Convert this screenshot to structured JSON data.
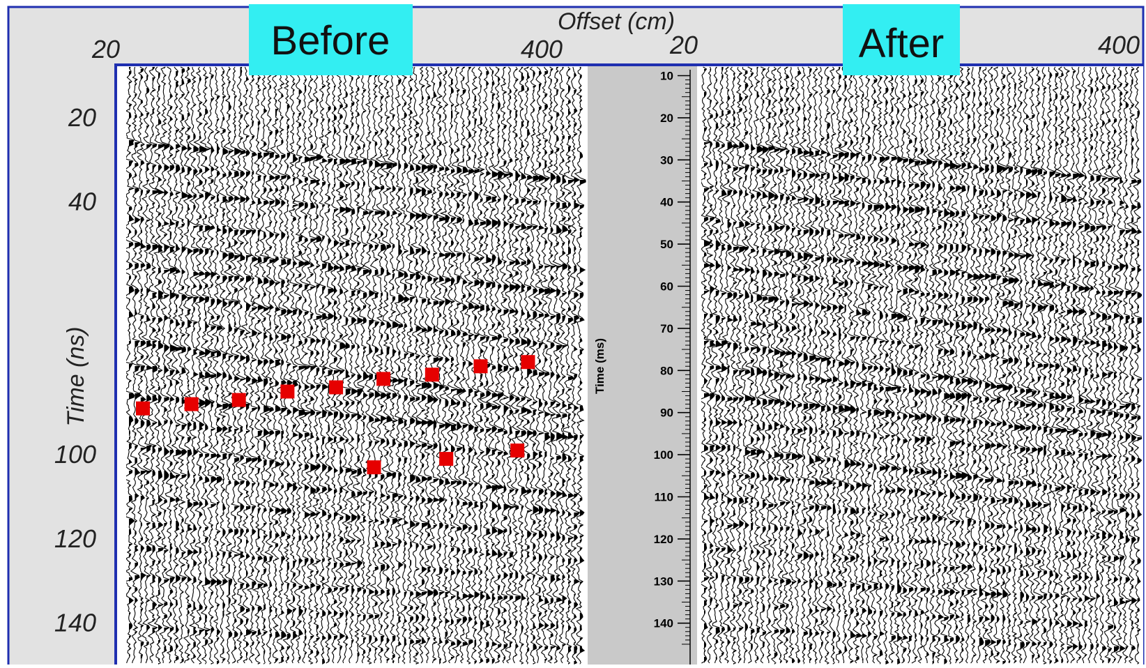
{
  "chart_data": [
    {
      "type": "scatter",
      "panel": "Before",
      "panel_label": "Before",
      "xlabel": "Offset (cm)",
      "ylabel": "Time (ns)",
      "x_tick_labels": [
        "20",
        "400"
      ],
      "y_tick_labels": [
        "20",
        "40",
        "100",
        "120",
        "140"
      ],
      "xlim": [
        20,
        400
      ],
      "ylim": [
        10,
        145
      ],
      "grid": false,
      "background": "wiggle-trace seismic section (black variable-area fill), reflectors dipping toward larger offset",
      "series": [
        {
          "color": "#e60000",
          "points": [
            {
              "x": 37,
              "y": 89
            },
            {
              "x": 78,
              "y": 88
            },
            {
              "x": 118,
              "y": 87
            },
            {
              "x": 159,
              "y": 85
            },
            {
              "x": 200,
              "y": 84
            },
            {
              "x": 240,
              "y": 82
            },
            {
              "x": 281,
              "y": 81
            },
            {
              "x": 322,
              "y": 79
            },
            {
              "x": 362,
              "y": 78
            }
          ]
        },
        {
          "color": "#e60000",
          "points": [
            {
              "x": 232,
              "y": 103
            },
            {
              "x": 293,
              "y": 101
            },
            {
              "x": 353,
              "y": 99
            }
          ]
        }
      ]
    },
    {
      "type": "scatter",
      "panel": "After",
      "panel_label": "After",
      "ylabel": "Time (ms)",
      "x_tick_labels": [
        "20",
        "400"
      ],
      "y_tick_labels": [
        "10",
        "20",
        "30",
        "40",
        "50",
        "60",
        "70",
        "80",
        "90",
        "100",
        "110",
        "120",
        "130",
        "140"
      ],
      "xlim": [
        20,
        400
      ],
      "ylim": [
        10,
        145
      ],
      "grid": false,
      "background": "wiggle-trace seismic section (black variable-area fill), reflectors dipping toward larger offset"
    }
  ],
  "colors": {
    "frame": "#1f2fb0",
    "label_box": "#33eef2",
    "header_bg": "#e2e2e2",
    "center_strip": "#c9c9c9",
    "picks": "#e60000",
    "trace_ink": "#000000"
  }
}
